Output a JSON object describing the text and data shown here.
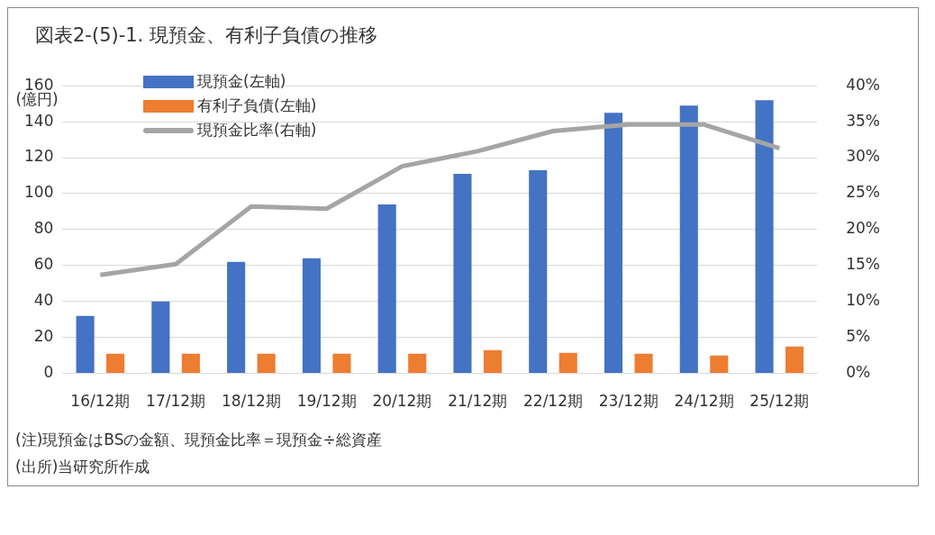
{
  "chart_data": {
    "type": "bar",
    "title": "図表2-(5)-1.  現預金、有利子負債の推移",
    "ylabel": "(億円)",
    "categories": [
      "16/12期",
      "17/12期",
      "18/12期",
      "19/12期",
      "20/12期",
      "21/12期",
      "22/12期",
      "23/12期",
      "24/12期",
      "25/12期"
    ],
    "series": [
      {
        "name": "現預金(左軸)",
        "color": "#4472c4",
        "values": [
          32,
          40,
          62,
          64,
          94,
          111,
          113,
          145,
          149,
          152
        ]
      },
      {
        "name": "有利子負債(左軸)",
        "color": "#ed7d31",
        "values": [
          11,
          11,
          11,
          11,
          11,
          13,
          11.5,
          11,
          10,
          15
        ]
      },
      {
        "name": "現預金比率(右軸)",
        "type": "line",
        "axis": "y2",
        "color": "#a5a5a5",
        "values": [
          13.7,
          15.2,
          23.2,
          22.9,
          28.8,
          30.9,
          33.7,
          34.6,
          34.6,
          31.3
        ]
      }
    ],
    "ylim": [
      0,
      160
    ],
    "yticks": [
      0,
      20,
      40,
      60,
      80,
      100,
      120,
      140,
      160
    ],
    "y2lim": [
      0,
      40
    ],
    "y2ticks": [
      {
        "value": 0,
        "label": "0%"
      },
      {
        "value": 5,
        "label": "5%"
      },
      {
        "value": 10,
        "label": "10%"
      },
      {
        "value": 15,
        "label": "15%"
      },
      {
        "value": 20,
        "label": "20%"
      },
      {
        "value": 25,
        "label": "25%"
      },
      {
        "value": 30,
        "label": "30%"
      },
      {
        "value": 35,
        "label": "35%"
      },
      {
        "value": 40,
        "label": "40%"
      }
    ],
    "grid": "y",
    "legend": "top left",
    "marker": "none",
    "annotations": [
      "(注)現預金はBSの金額、現預金比率＝現預金÷総資産",
      "(出所)当研究所作成"
    ]
  }
}
